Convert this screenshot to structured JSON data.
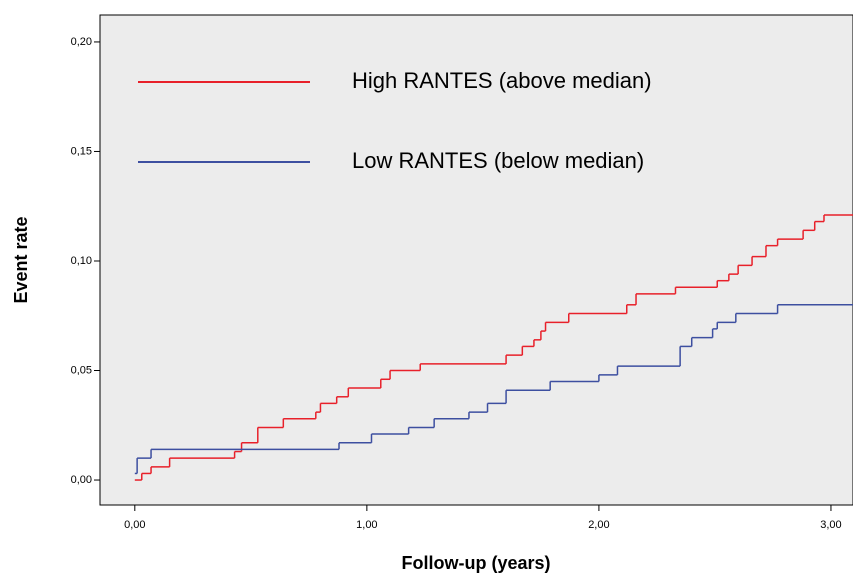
{
  "chart_data": {
    "type": "line",
    "step": "post",
    "ylabel": "Event rate",
    "xlabel": "Follow-up (years)",
    "xlim": [
      -0.15,
      3.095
    ],
    "ylim": [
      -0.0114,
      0.2123
    ],
    "xticks": [
      {
        "value": 0,
        "label": "0,00"
      },
      {
        "value": 1,
        "label": "1,00"
      },
      {
        "value": 2,
        "label": "2,00"
      },
      {
        "value": 3,
        "label": "3,00"
      }
    ],
    "yticks": [
      {
        "value": 0,
        "label": "0,00"
      },
      {
        "value": 0.05,
        "label": "0,05"
      },
      {
        "value": 0.1,
        "label": "0,10"
      },
      {
        "value": 0.15,
        "label": "0,15"
      },
      {
        "value": 0.2,
        "label": "0,20"
      }
    ],
    "background": "#ececec",
    "series": [
      {
        "name": "High RANTES (above median)",
        "color": "#e8202a",
        "x": [
          0,
          0.03,
          0.07,
          0.15,
          0.43,
          0.46,
          0.53,
          0.64,
          0.78,
          0.8,
          0.87,
          0.92,
          1.06,
          1.1,
          1.23,
          1.6,
          1.67,
          1.72,
          1.75,
          1.77,
          1.87,
          2.12,
          2.16,
          2.33,
          2.51,
          2.56,
          2.6,
          2.66,
          2.72,
          2.77,
          2.88,
          2.93,
          2.97,
          3.095
        ],
        "values": [
          0,
          0.003,
          0.006,
          0.01,
          0.013,
          0.017,
          0.024,
          0.028,
          0.031,
          0.035,
          0.038,
          0.042,
          0.046,
          0.05,
          0.053,
          0.057,
          0.061,
          0.064,
          0.068,
          0.072,
          0.076,
          0.08,
          0.085,
          0.088,
          0.091,
          0.094,
          0.098,
          0.102,
          0.107,
          0.11,
          0.114,
          0.118,
          0.121,
          0.121
        ]
      },
      {
        "name": "Low RANTES (below median)",
        "color": "#3d4fa0",
        "x": [
          0,
          0.01,
          0.07,
          0.88,
          1.02,
          1.18,
          1.29,
          1.44,
          1.52,
          1.6,
          1.79,
          2.0,
          2.08,
          2.35,
          2.4,
          2.49,
          2.51,
          2.59,
          2.77,
          3.095
        ],
        "values": [
          0.003,
          0.01,
          0.014,
          0.017,
          0.021,
          0.024,
          0.028,
          0.031,
          0.035,
          0.041,
          0.045,
          0.048,
          0.052,
          0.061,
          0.065,
          0.069,
          0.072,
          0.076,
          0.08,
          0.08
        ]
      }
    ]
  }
}
